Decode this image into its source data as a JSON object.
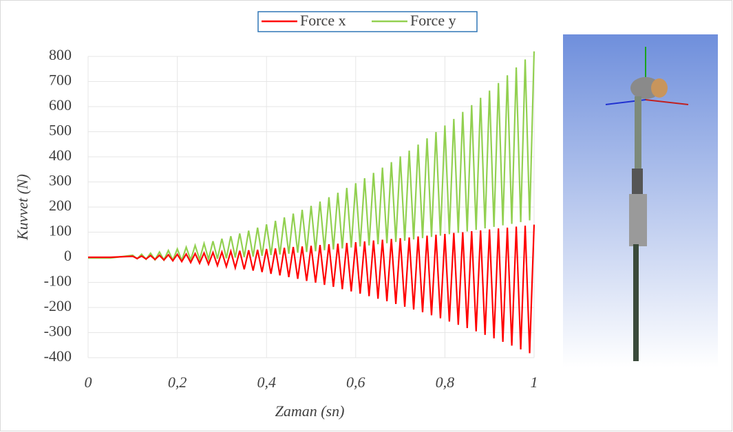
{
  "chart_data": {
    "type": "line",
    "x_label": "Zaman (sn)",
    "y_label": "Kuvvet (N)",
    "x": [
      0,
      0.05,
      0.1,
      0.11,
      0.12,
      0.13,
      0.14,
      0.15,
      0.16,
      0.17,
      0.18,
      0.19,
      0.2,
      0.21,
      0.22,
      0.23,
      0.24,
      0.25,
      0.26,
      0.27,
      0.28,
      0.29,
      0.3,
      0.31,
      0.32,
      0.33,
      0.34,
      0.35,
      0.36,
      0.37,
      0.38,
      0.39,
      0.4,
      0.41,
      0.42,
      0.43,
      0.44,
      0.45,
      0.46,
      0.47,
      0.48,
      0.49,
      0.5,
      0.51,
      0.52,
      0.53,
      0.54,
      0.55,
      0.56,
      0.57,
      0.58,
      0.59,
      0.6,
      0.61,
      0.62,
      0.63,
      0.64,
      0.65,
      0.66,
      0.67,
      0.68,
      0.69,
      0.7,
      0.71,
      0.72,
      0.73,
      0.74,
      0.75,
      0.76,
      0.77,
      0.78,
      0.79,
      0.8,
      0.81,
      0.82,
      0.83,
      0.84,
      0.85,
      0.86,
      0.87,
      0.88,
      0.89,
      0.9,
      0.91,
      0.92,
      0.93,
      0.94,
      0.95,
      0.96,
      0.97,
      0.98,
      0.99,
      1
    ],
    "series": [
      {
        "name": "Force x",
        "color": "#ff0000",
        "values": [
          0,
          0,
          4,
          -5,
          5,
          -7,
          7,
          -9,
          8,
          -11,
          10,
          -14,
          12,
          -17,
          13,
          -21,
          15,
          -24,
          17,
          -28,
          19,
          -33,
          21,
          -37,
          24,
          -42,
          26,
          -48,
          28,
          -53,
          30,
          -59,
          33,
          -66,
          35,
          -72,
          38,
          -79,
          41,
          -86,
          43,
          -94,
          46,
          -101,
          49,
          -110,
          52,
          -118,
          54,
          -127,
          57,
          -136,
          60,
          -145,
          63,
          -155,
          67,
          -165,
          70,
          -175,
          73,
          -186,
          76,
          -197,
          79,
          -208,
          83,
          -219,
          86,
          -231,
          90,
          -243,
          93,
          -256,
          97,
          -269,
          100,
          -282,
          104,
          -295,
          107,
          -309,
          111,
          -323,
          115,
          -337,
          118,
          -352,
          122,
          -367,
          126,
          -382,
          130
        ]
      },
      {
        "name": "Force y",
        "color": "#92d050",
        "values": [
          -3,
          -3,
          8,
          -6,
          12,
          -8,
          16,
          -10,
          21,
          -11,
          27,
          -12,
          33,
          -13,
          40,
          -11,
          47,
          -9,
          55,
          -8,
          64,
          -6,
          74,
          -4,
          84,
          -1,
          95,
          1,
          106,
          3,
          118,
          6,
          131,
          9,
          145,
          11,
          159,
          14,
          174,
          18,
          189,
          21,
          205,
          24,
          222,
          28,
          239,
          31,
          257,
          35,
          276,
          39,
          295,
          43,
          315,
          47,
          336,
          52,
          357,
          56,
          379,
          61,
          402,
          66,
          425,
          71,
          449,
          76,
          474,
          81,
          499,
          86,
          525,
          92,
          551,
          97,
          579,
          103,
          606,
          109,
          635,
          115,
          664,
          121,
          694,
          127,
          725,
          133,
          756,
          140,
          788,
          147,
          820
        ]
      }
    ],
    "xlim": [
      0,
      1
    ],
    "ylim": [
      -400,
      800
    ],
    "xticks": [
      0,
      {
        "value": 0.2,
        "label": "0,2"
      },
      {
        "value": 0.4,
        "label": "0,4"
      },
      {
        "value": 0.6,
        "label": "0,6"
      },
      {
        "value": 0.8,
        "label": "0,8"
      },
      1
    ],
    "yticks": [
      -400,
      -300,
      -200,
      -100,
      0,
      100,
      200,
      300,
      400,
      500,
      600,
      700,
      800
    ],
    "grid": true,
    "legend": "top"
  }
}
